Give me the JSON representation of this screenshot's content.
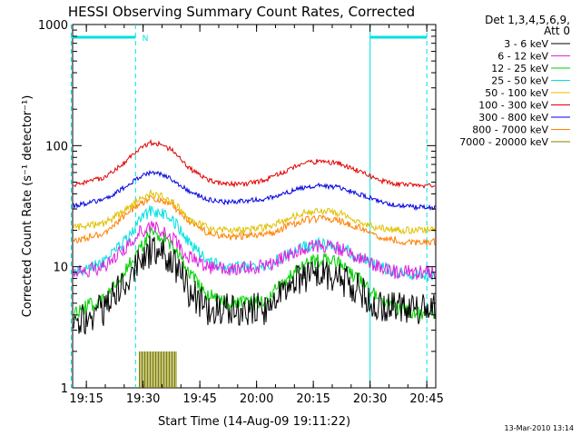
{
  "chart_data": {
    "type": "line",
    "title": "HESSI Observing Summary Count Rates, Corrected",
    "xlabel": "Start Time (14-Aug-09 19:11:22)",
    "ylabel": "Corrected Count Rate (s⁻¹ detector⁻¹)",
    "yscale": "log",
    "ylim": [
      1,
      1000
    ],
    "xlim_minutes": [
      0,
      96
    ],
    "x_ticks": [
      "19:15",
      "19:30",
      "19:45",
      "20:00",
      "20:15",
      "20:30",
      "20:45"
    ],
    "y_ticks": [
      "1",
      "10",
      "100",
      "1000"
    ],
    "legend_header": [
      "Det 1,3,4,5,6,9,",
      "Att 0"
    ],
    "legend_position": "right",
    "footer": "13-Mar-2010 13:14",
    "flag_label": "N",
    "flag_bars": [
      {
        "start": "19:11",
        "end": "19:28"
      },
      {
        "start": "20:30",
        "end": "20:45"
      }
    ],
    "night_markers": [
      "19:11",
      "19:28",
      "20:30",
      "20:45"
    ],
    "x_times": [
      "19:12",
      "19:20",
      "19:25",
      "19:29",
      "19:32",
      "19:35",
      "19:38",
      "19:42",
      "19:47",
      "19:52",
      "19:57",
      "20:02",
      "20:07",
      "20:12",
      "20:17",
      "20:22",
      "20:27",
      "20:32",
      "20:37",
      "20:42",
      "20:46"
    ],
    "series": [
      {
        "name": "3 - 6 keV",
        "color": "#000000",
        "values": [
          3.5,
          4.5,
          7.5,
          11,
          13.5,
          13,
          11,
          6.5,
          4.5,
          4.5,
          4.5,
          4.5,
          6,
          8,
          9,
          8,
          6.5,
          4.5,
          4.5,
          4.5,
          4.5
        ]
      },
      {
        "name": "6 - 12 keV",
        "color": "#e020e0",
        "values": [
          9,
          10,
          14,
          19,
          21,
          20,
          17,
          12,
          10,
          9.5,
          10,
          10,
          12,
          14,
          15,
          14,
          12,
          10,
          9,
          9,
          9
        ]
      },
      {
        "name": "12 - 25 keV",
        "color": "#00d000",
        "values": [
          4.2,
          5.5,
          9,
          14,
          18.5,
          18,
          15,
          9,
          6,
          5,
          5,
          5,
          7.5,
          10.5,
          11.5,
          10.5,
          8,
          5.5,
          4.5,
          4.2,
          4.2
        ]
      },
      {
        "name": "25 - 50 keV",
        "color": "#00e0e0",
        "values": [
          9,
          11,
          16,
          24,
          29,
          28,
          24,
          16,
          11,
          10,
          10,
          10,
          12,
          14.5,
          15.5,
          14.5,
          12,
          10,
          9,
          8.5,
          8.5
        ]
      },
      {
        "name": "50 - 100 keV",
        "color": "#e0c000",
        "values": [
          21,
          23,
          29,
          36,
          40,
          38,
          34,
          25,
          21,
          20,
          20,
          21,
          24,
          27.5,
          29,
          27.5,
          24,
          21,
          20,
          20,
          20
        ]
      },
      {
        "name": "100 - 300 keV",
        "color": "#e00000",
        "values": [
          47,
          55,
          72,
          95,
          106,
          102,
          90,
          66,
          52,
          48,
          48,
          52,
          60,
          71,
          75,
          71,
          62,
          52,
          48,
          47,
          47
        ]
      },
      {
        "name": "300 - 800 keV",
        "color": "#0000e0",
        "values": [
          32,
          36,
          45,
          55,
          60,
          58,
          52,
          42,
          36,
          34,
          35,
          36,
          40,
          45,
          47,
          45,
          40,
          35,
          32,
          31,
          31
        ]
      },
      {
        "name": "800 - 7000 keV",
        "color": "#ff7f00",
        "values": [
          16.5,
          19,
          26,
          33,
          37,
          36,
          32,
          24,
          19,
          17.5,
          18,
          18,
          21,
          24,
          25,
          24,
          21,
          18,
          16.5,
          16,
          16
        ]
      },
      {
        "name": "7000 - 20000 keV",
        "color": "#808000",
        "values": [
          null,
          null,
          null,
          null,
          null,
          null,
          null,
          null,
          null,
          null,
          null,
          null,
          null,
          null,
          null,
          null,
          null,
          null,
          null,
          null,
          null
        ]
      }
    ],
    "burst_series": {
      "name": "7000 - 20000 keV",
      "start": "19:29",
      "end": "19:39",
      "value": 2
    }
  }
}
